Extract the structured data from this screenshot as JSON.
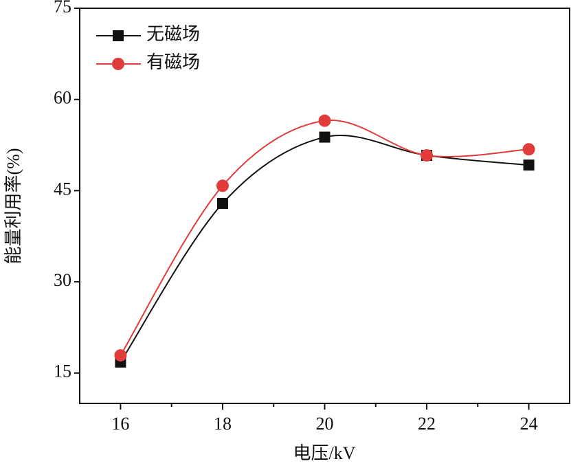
{
  "chart_data": {
    "type": "line",
    "x_label": "电压/kV",
    "y_label": "能量利用率(%)",
    "x": [
      16,
      18,
      20,
      22,
      24
    ],
    "series": [
      {
        "name": "无磁场",
        "color": "#111111",
        "marker": "square",
        "values": [
          16.8,
          42.9,
          53.8,
          50.8,
          49.2
        ]
      },
      {
        "name": "有磁场",
        "color": "#e03c3c",
        "marker": "circle",
        "values": [
          17.9,
          45.8,
          56.5,
          50.8,
          51.8
        ]
      }
    ],
    "xlim": [
      15.2,
      24.8
    ],
    "xticks": [
      16,
      18,
      20,
      22,
      24
    ],
    "xminorticks": [
      17,
      19,
      21,
      23
    ],
    "ylim": [
      10,
      75
    ],
    "yticks": [
      15,
      30,
      45,
      60,
      75
    ],
    "legend": "upper-left",
    "grid": false
  }
}
